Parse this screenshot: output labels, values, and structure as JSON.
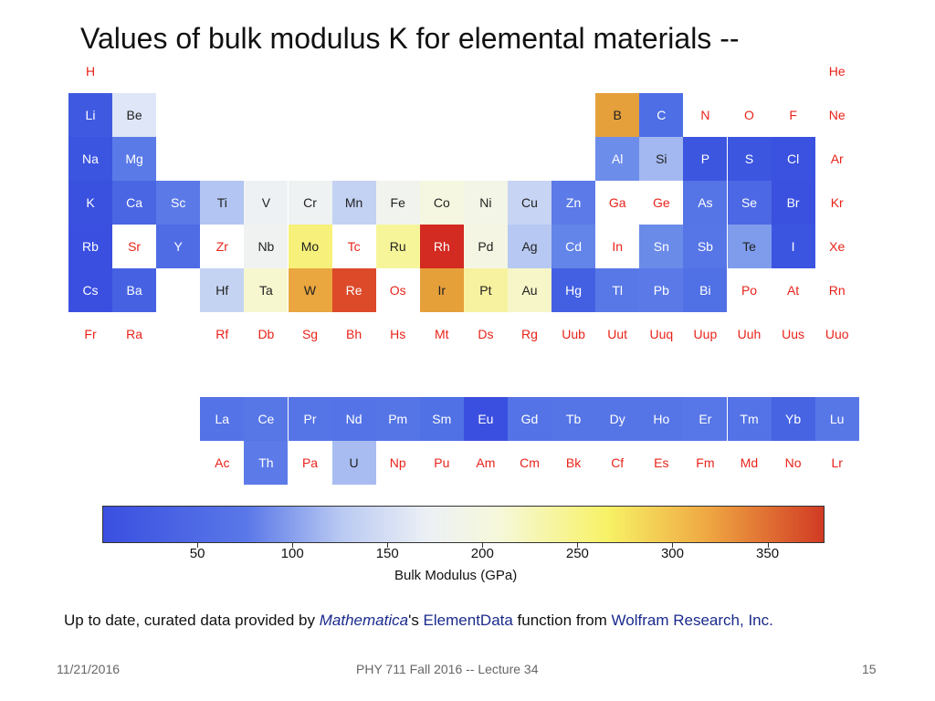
{
  "slide": {
    "title": "Values of bulk modulus K for elemental materials --",
    "footer_date": "11/21/2016",
    "footer_course": "PHY 711  Fall 2016 -- Lecture 34",
    "footer_page": "15"
  },
  "colors": {
    "no_data_text": "#e8231a",
    "colorbar_stops": [
      "#3a4fe0",
      "#5a78e8",
      "#b9c9f2",
      "#ecf0f5",
      "#f6f8da",
      "#f7f266",
      "#efa742",
      "#d13a24"
    ]
  },
  "colorbar": {
    "label": "Bulk Modulus (GPa)",
    "tick_labels": [
      "50",
      "100",
      "150",
      "200",
      "250",
      "300",
      "350"
    ]
  },
  "credit": {
    "prefix": "Up to date, curated data provided by ",
    "mathematica": "Mathematica",
    "possessive": "'s ",
    "elementdata": "ElementData",
    "middle": " function from ",
    "wolfram": "Wolfram Research, Inc."
  },
  "elements": [
    {
      "symbol": "H",
      "row": 1,
      "col": 1,
      "fill": null
    },
    {
      "symbol": "He",
      "row": 1,
      "col": 18,
      "fill": null
    },
    {
      "symbol": "Li",
      "row": 2,
      "col": 1,
      "fill": "#3f5ae0"
    },
    {
      "symbol": "Be",
      "row": 2,
      "col": 2,
      "fill": "#dfe6f7"
    },
    {
      "symbol": "B",
      "row": 2,
      "col": 13,
      "fill": "#e5a03c"
    },
    {
      "symbol": "C",
      "row": 2,
      "col": 14,
      "fill": "#4e6ee6"
    },
    {
      "symbol": "N",
      "row": 2,
      "col": 15,
      "fill": null
    },
    {
      "symbol": "O",
      "row": 2,
      "col": 16,
      "fill": null
    },
    {
      "symbol": "F",
      "row": 2,
      "col": 17,
      "fill": null
    },
    {
      "symbol": "Ne",
      "row": 2,
      "col": 18,
      "fill": null
    },
    {
      "symbol": "Na",
      "row": 3,
      "col": 1,
      "fill": "#3b55e0"
    },
    {
      "symbol": "Mg",
      "row": 3,
      "col": 2,
      "fill": "#5a7ae8"
    },
    {
      "symbol": "Al",
      "row": 3,
      "col": 13,
      "fill": "#6d8dea"
    },
    {
      "symbol": "Si",
      "row": 3,
      "col": 14,
      "fill": "#a3b8f0"
    },
    {
      "symbol": "P",
      "row": 3,
      "col": 15,
      "fill": "#3c56e0"
    },
    {
      "symbol": "S",
      "row": 3,
      "col": 16,
      "fill": "#3c56e0"
    },
    {
      "symbol": "Cl",
      "row": 3,
      "col": 17,
      "fill": "#3a52df"
    },
    {
      "symbol": "Ar",
      "row": 3,
      "col": 18,
      "fill": null
    },
    {
      "symbol": "K",
      "row": 4,
      "col": 1,
      "fill": "#3a50df"
    },
    {
      "symbol": "Ca",
      "row": 4,
      "col": 2,
      "fill": "#4a66e3"
    },
    {
      "symbol": "Sc",
      "row": 4,
      "col": 3,
      "fill": "#5b7ae8"
    },
    {
      "symbol": "Ti",
      "row": 4,
      "col": 4,
      "fill": "#b3c5f2"
    },
    {
      "symbol": "V",
      "row": 4,
      "col": 5,
      "fill": "#eef1f4"
    },
    {
      "symbol": "Cr",
      "row": 4,
      "col": 6,
      "fill": "#eff2f2"
    },
    {
      "symbol": "Mn",
      "row": 4,
      "col": 7,
      "fill": "#c3d1f3"
    },
    {
      "symbol": "Fe",
      "row": 4,
      "col": 8,
      "fill": "#f0f3ee"
    },
    {
      "symbol": "Co",
      "row": 4,
      "col": 9,
      "fill": "#f5f7e0"
    },
    {
      "symbol": "Ni",
      "row": 4,
      "col": 10,
      "fill": "#f3f5e6"
    },
    {
      "symbol": "Cu",
      "row": 4,
      "col": 11,
      "fill": "#c7d4f3"
    },
    {
      "symbol": "Zn",
      "row": 4,
      "col": 12,
      "fill": "#5c7be8"
    },
    {
      "symbol": "Ga",
      "row": 4,
      "col": 13,
      "fill": null
    },
    {
      "symbol": "Ge",
      "row": 4,
      "col": 14,
      "fill": null
    },
    {
      "symbol": "As",
      "row": 4,
      "col": 15,
      "fill": "#5574e6"
    },
    {
      "symbol": "Se",
      "row": 4,
      "col": 16,
      "fill": "#4c68e4"
    },
    {
      "symbol": "Br",
      "row": 4,
      "col": 17,
      "fill": "#3a50df"
    },
    {
      "symbol": "Kr",
      "row": 4,
      "col": 18,
      "fill": null
    },
    {
      "symbol": "Rb",
      "row": 5,
      "col": 1,
      "fill": "#3a4fe0"
    },
    {
      "symbol": "Sr",
      "row": 5,
      "col": 2,
      "fill": null
    },
    {
      "symbol": "Y",
      "row": 5,
      "col": 3,
      "fill": "#4f6ce5"
    },
    {
      "symbol": "Zr",
      "row": 5,
      "col": 4,
      "fill": null
    },
    {
      "symbol": "Nb",
      "row": 5,
      "col": 5,
      "fill": "#f0f2f2"
    },
    {
      "symbol": "Mo",
      "row": 5,
      "col": 6,
      "fill": "#f7f07a"
    },
    {
      "symbol": "Tc",
      "row": 5,
      "col": 7,
      "fill": null
    },
    {
      "symbol": "Ru",
      "row": 5,
      "col": 8,
      "fill": "#f7f59a"
    },
    {
      "symbol": "Rh",
      "row": 5,
      "col": 9,
      "fill": "#d32a22"
    },
    {
      "symbol": "Pd",
      "row": 5,
      "col": 10,
      "fill": "#f4f6e3"
    },
    {
      "symbol": "Ag",
      "row": 5,
      "col": 11,
      "fill": "#b7c8f2"
    },
    {
      "symbol": "Cd",
      "row": 5,
      "col": 12,
      "fill": "#6384e8"
    },
    {
      "symbol": "In",
      "row": 5,
      "col": 13,
      "fill": null
    },
    {
      "symbol": "Sn",
      "row": 5,
      "col": 14,
      "fill": "#6b8be9"
    },
    {
      "symbol": "Sb",
      "row": 5,
      "col": 15,
      "fill": "#5675e6"
    },
    {
      "symbol": "Te",
      "row": 5,
      "col": 16,
      "fill": "#7f9cec"
    },
    {
      "symbol": "I",
      "row": 5,
      "col": 17,
      "fill": "#3c55e0"
    },
    {
      "symbol": "Xe",
      "row": 5,
      "col": 18,
      "fill": null
    },
    {
      "symbol": "Cs",
      "row": 6,
      "col": 1,
      "fill": "#3a4fe0"
    },
    {
      "symbol": "Ba",
      "row": 6,
      "col": 2,
      "fill": "#4662e3"
    },
    {
      "symbol": "Hf",
      "row": 6,
      "col": 4,
      "fill": "#c5d3f3"
    },
    {
      "symbol": "Ta",
      "row": 6,
      "col": 5,
      "fill": "#f6f7cf"
    },
    {
      "symbol": "W",
      "row": 6,
      "col": 6,
      "fill": "#eaa63f"
    },
    {
      "symbol": "Re",
      "row": 6,
      "col": 7,
      "fill": "#dc4a2a"
    },
    {
      "symbol": "Os",
      "row": 6,
      "col": 8,
      "fill": null
    },
    {
      "symbol": "Ir",
      "row": 6,
      "col": 9,
      "fill": "#e6a03a"
    },
    {
      "symbol": "Pt",
      "row": 6,
      "col": 10,
      "fill": "#f7f2a0"
    },
    {
      "symbol": "Au",
      "row": 6,
      "col": 11,
      "fill": "#f6f6c8"
    },
    {
      "symbol": "Hg",
      "row": 6,
      "col": 12,
      "fill": "#4360e2"
    },
    {
      "symbol": "Tl",
      "row": 6,
      "col": 13,
      "fill": "#5878e7"
    },
    {
      "symbol": "Pb",
      "row": 6,
      "col": 14,
      "fill": "#5b7ae8"
    },
    {
      "symbol": "Bi",
      "row": 6,
      "col": 15,
      "fill": "#5070e6"
    },
    {
      "symbol": "Po",
      "row": 6,
      "col": 16,
      "fill": null
    },
    {
      "symbol": "At",
      "row": 6,
      "col": 17,
      "fill": null
    },
    {
      "symbol": "Rn",
      "row": 6,
      "col": 18,
      "fill": null
    },
    {
      "symbol": "Fr",
      "row": 7,
      "col": 1,
      "fill": null
    },
    {
      "symbol": "Ra",
      "row": 7,
      "col": 2,
      "fill": null
    },
    {
      "symbol": "Rf",
      "row": 7,
      "col": 4,
      "fill": null
    },
    {
      "symbol": "Db",
      "row": 7,
      "col": 5,
      "fill": null
    },
    {
      "symbol": "Sg",
      "row": 7,
      "col": 6,
      "fill": null
    },
    {
      "symbol": "Bh",
      "row": 7,
      "col": 7,
      "fill": null
    },
    {
      "symbol": "Hs",
      "row": 7,
      "col": 8,
      "fill": null
    },
    {
      "symbol": "Mt",
      "row": 7,
      "col": 9,
      "fill": null
    },
    {
      "symbol": "Ds",
      "row": 7,
      "col": 10,
      "fill": null
    },
    {
      "symbol": "Rg",
      "row": 7,
      "col": 11,
      "fill": null
    },
    {
      "symbol": "Uub",
      "row": 7,
      "col": 12,
      "fill": null
    },
    {
      "symbol": "Uut",
      "row": 7,
      "col": 13,
      "fill": null
    },
    {
      "symbol": "Uuq",
      "row": 7,
      "col": 14,
      "fill": null
    },
    {
      "symbol": "Uup",
      "row": 7,
      "col": 15,
      "fill": null
    },
    {
      "symbol": "Uuh",
      "row": 7,
      "col": 16,
      "fill": null
    },
    {
      "symbol": "Uus",
      "row": 7,
      "col": 17,
      "fill": null
    },
    {
      "symbol": "Uuo",
      "row": 7,
      "col": 18,
      "fill": null
    },
    {
      "symbol": "La",
      "row": 9,
      "col": 4,
      "fill": "#5473e6"
    },
    {
      "symbol": "Ce",
      "row": 9,
      "col": 5,
      "fill": "#5877e7"
    },
    {
      "symbol": "Pr",
      "row": 9,
      "col": 6,
      "fill": "#5574e6"
    },
    {
      "symbol": "Nd",
      "row": 9,
      "col": 7,
      "fill": "#5473e6"
    },
    {
      "symbol": "Pm",
      "row": 9,
      "col": 8,
      "fill": "#5574e6"
    },
    {
      "symbol": "Sm",
      "row": 9,
      "col": 9,
      "fill": "#5070e5"
    },
    {
      "symbol": "Eu",
      "row": 9,
      "col": 10,
      "fill": "#3a4fdf"
    },
    {
      "symbol": "Gd",
      "row": 9,
      "col": 11,
      "fill": "#5473e6"
    },
    {
      "symbol": "Tb",
      "row": 9,
      "col": 12,
      "fill": "#5574e6"
    },
    {
      "symbol": "Dy",
      "row": 9,
      "col": 13,
      "fill": "#5574e6"
    },
    {
      "symbol": "Ho",
      "row": 9,
      "col": 14,
      "fill": "#5574e6"
    },
    {
      "symbol": "Er",
      "row": 9,
      "col": 15,
      "fill": "#5776e7"
    },
    {
      "symbol": "Tm",
      "row": 9,
      "col": 16,
      "fill": "#5473e6"
    },
    {
      "symbol": "Yb",
      "row": 9,
      "col": 17,
      "fill": "#4764e3"
    },
    {
      "symbol": "Lu",
      "row": 9,
      "col": 18,
      "fill": "#5877e7"
    },
    {
      "symbol": "Ac",
      "row": 10,
      "col": 4,
      "fill": null
    },
    {
      "symbol": "Th",
      "row": 10,
      "col": 5,
      "fill": "#5c7be8"
    },
    {
      "symbol": "Pa",
      "row": 10,
      "col": 6,
      "fill": null
    },
    {
      "symbol": "U",
      "row": 10,
      "col": 7,
      "fill": "#a8bcf1"
    },
    {
      "symbol": "Np",
      "row": 10,
      "col": 8,
      "fill": null
    },
    {
      "symbol": "Pu",
      "row": 10,
      "col": 9,
      "fill": null
    },
    {
      "symbol": "Am",
      "row": 10,
      "col": 10,
      "fill": null
    },
    {
      "symbol": "Cm",
      "row": 10,
      "col": 11,
      "fill": null
    },
    {
      "symbol": "Bk",
      "row": 10,
      "col": 12,
      "fill": null
    },
    {
      "symbol": "Cf",
      "row": 10,
      "col": 13,
      "fill": null
    },
    {
      "symbol": "Es",
      "row": 10,
      "col": 14,
      "fill": null
    },
    {
      "symbol": "Fm",
      "row": 10,
      "col": 15,
      "fill": null
    },
    {
      "symbol": "Md",
      "row": 10,
      "col": 16,
      "fill": null
    },
    {
      "symbol": "No",
      "row": 10,
      "col": 17,
      "fill": null
    },
    {
      "symbol": "Lr",
      "row": 10,
      "col": 18,
      "fill": null
    }
  ]
}
